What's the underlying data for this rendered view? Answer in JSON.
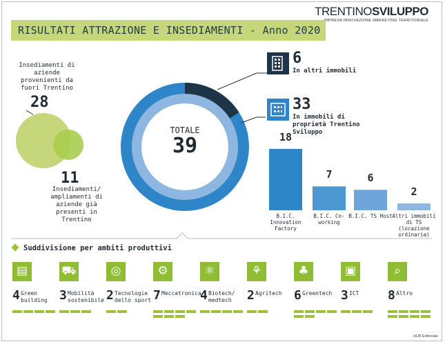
{
  "brand": {
    "logo_light": "TRENTINO",
    "logo_bold": "SVILUPPO",
    "tagline": "IMPRESA INNOVAZIONE MARKETING TERRITORIALE"
  },
  "title": "RISULTATI ATTRAZIONE E INSEDIAMENTI - Anno 2020",
  "left": {
    "top_label": "Insediamenti di aziende provenienti da fuori Trentino",
    "top_value": "28",
    "bottom_value": "11",
    "bottom_label": "Insediamenti/ ampliamenti di aziende già presenti in Trentino"
  },
  "donut": {
    "center_label": "TOTALE",
    "center_value": "39"
  },
  "right_top": {
    "value": "6",
    "label": "In altri immobili"
  },
  "right_mid": {
    "value": "33",
    "label": "In immobili di proprietà Trentino Sviluppo"
  },
  "chart_data": {
    "type": "bar",
    "categories": [
      "B.I.C. Innovation Factory",
      "B.I.C. Co-working",
      "B.I.C. TS Host",
      "Altri immobili di TS (locazione ordinaria)"
    ],
    "values": [
      18,
      7,
      6,
      2
    ],
    "value_labels": [
      "18",
      "7",
      "6",
      "2"
    ]
  },
  "sectors_title": "Suddivisione per ambiti produttivi",
  "sectors": [
    {
      "value": "4",
      "name": "Green building",
      "n": 4
    },
    {
      "value": "3",
      "name": "Mobilità sostenibile",
      "n": 3
    },
    {
      "value": "2",
      "name": "Tecnologie dello sport",
      "n": 2
    },
    {
      "value": "7",
      "name": "Meccatronica",
      "n": 7
    },
    {
      "value": "4",
      "name": "Biotech/ medtech",
      "n": 4
    },
    {
      "value": "2",
      "name": "Agritech",
      "n": 2
    },
    {
      "value": "6",
      "name": "Greentech",
      "n": 6
    },
    {
      "value": "3",
      "name": "ICT",
      "n": 3
    },
    {
      "value": "8",
      "name": "Altro",
      "n": 8
    }
  ],
  "credit": "HUB Editoriale",
  "colors": {
    "lime": "#c5d77a",
    "green_icon": "#8fbe35",
    "blue": "#2e86c8",
    "light_blue": "#6ea6d9",
    "navy": "#1e3548"
  }
}
